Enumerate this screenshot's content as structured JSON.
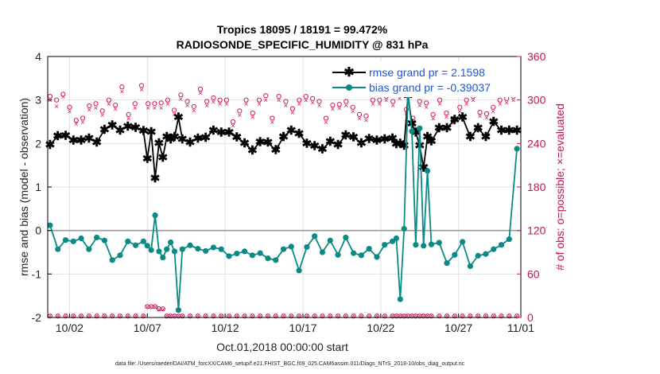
{
  "chart_data": {
    "type": "line",
    "title_line1": "Tropics 18095 / 18191 = 99.472%",
    "title_line2": "RADIOSONDE_SPECIFIC_HUMIDITY @ 831 hPa",
    "xlabel": "Oct.01,2018 00:00:00 start",
    "ylabel_left": "rmse and bias (model - observation)",
    "ylabel_right": "# of obs: o=possible; ×=evaluated",
    "footnote": "data file: /Users/raeder/DAI/ATM_forcXX/CAM6_setup/f.e21.FHIST_BGC.f09_025.CAM6assim.011/Diags_NTrS_2018-10/obs_diag_output.nc",
    "xlim": [
      0.6,
      31.0
    ],
    "ylim_left": [
      -2,
      4
    ],
    "ylim_right": [
      0,
      360
    ],
    "x_ticks": [
      {
        "v": 2,
        "label": "10/02"
      },
      {
        "v": 7,
        "label": "10/07"
      },
      {
        "v": 12,
        "label": "10/12"
      },
      {
        "v": 17,
        "label": "10/17"
      },
      {
        "v": 22,
        "label": "10/22"
      },
      {
        "v": 27,
        "label": "10/27"
      },
      {
        "v": 31,
        "label": "11/01"
      }
    ],
    "y_ticks_left": [
      {
        "v": -2,
        "label": "-2"
      },
      {
        "v": -1,
        "label": "-1"
      },
      {
        "v": 0,
        "label": "0"
      },
      {
        "v": 1,
        "label": "1"
      },
      {
        "v": 2,
        "label": "2"
      },
      {
        "v": 3,
        "label": "3"
      },
      {
        "v": 4,
        "label": "4"
      }
    ],
    "y_ticks_right": [
      {
        "v": 0,
        "label": "0"
      },
      {
        "v": 60,
        "label": "60"
      },
      {
        "v": 120,
        "label": "120"
      },
      {
        "v": 180,
        "label": "180"
      },
      {
        "v": 240,
        "label": "240"
      },
      {
        "v": 300,
        "label": "300"
      },
      {
        "v": 360,
        "label": "360"
      }
    ],
    "zero_line": 0,
    "x": [
      0.75,
      1.25,
      1.75,
      2.25,
      2.75,
      3.25,
      3.75,
      4.25,
      4.75,
      5.25,
      5.75,
      6.25,
      6.75,
      7.0,
      7.25,
      7.5,
      7.75,
      8.0,
      8.25,
      8.5,
      8.75,
      9.0,
      9.25,
      9.75,
      10.25,
      10.75,
      11.25,
      11.75,
      12.25,
      12.75,
      13.25,
      13.75,
      14.25,
      14.75,
      15.25,
      15.75,
      16.25,
      16.75,
      17.25,
      17.75,
      18.25,
      18.75,
      19.25,
      19.75,
      20.25,
      20.75,
      21.25,
      21.75,
      22.25,
      22.75,
      23.0,
      23.25,
      23.5,
      23.75,
      24.0,
      24.25,
      24.5,
      24.75,
      25.0,
      25.25,
      25.75,
      26.25,
      26.75,
      27.25,
      27.75,
      28.25,
      28.75,
      29.25,
      29.75,
      30.25,
      30.75
    ],
    "series": [
      {
        "name": "rmse",
        "legend": "rmse grand pr = 2.1598",
        "color": "#000000",
        "values": [
          1.97,
          2.17,
          2.18,
          2.07,
          2.07,
          2.12,
          2.02,
          2.32,
          2.42,
          2.3,
          2.39,
          2.36,
          2.29,
          1.65,
          2.26,
          1.2,
          2.01,
          1.68,
          2.15,
          2.1,
          2.15,
          2.6,
          2.1,
          2.02,
          2.12,
          2.13,
          2.3,
          2.25,
          2.25,
          2.14,
          2.01,
          1.84,
          2.03,
          2.02,
          1.85,
          2.15,
          2.3,
          2.23,
          2.0,
          1.94,
          1.87,
          2.04,
          1.97,
          2.19,
          2.14,
          2.01,
          2.11,
          2.07,
          2.1,
          2.12,
          1.99,
          2.0,
          1.95,
          3.1,
          2.45,
          2.25,
          1.95,
          1.45,
          2.15,
          2.05,
          2.35,
          2.35,
          2.55,
          2.6,
          2.15,
          2.35,
          2.15,
          2.5,
          2.3,
          2.3,
          2.3
        ]
      },
      {
        "name": "bias",
        "legend": "bias grand pr = -0.39037",
        "color": "#0a8a86",
        "values": [
          0.12,
          -0.43,
          -0.22,
          -0.25,
          -0.18,
          -0.43,
          -0.16,
          -0.23,
          -0.68,
          -0.57,
          -0.25,
          -0.34,
          -0.25,
          -0.35,
          -0.45,
          0.35,
          -0.48,
          -0.62,
          -0.43,
          -0.27,
          -0.48,
          -1.83,
          -0.43,
          -0.34,
          -0.42,
          -0.47,
          -0.39,
          -0.43,
          -0.59,
          -0.53,
          -0.48,
          -0.57,
          -0.52,
          -0.64,
          -0.68,
          -0.43,
          -0.37,
          -0.92,
          -0.38,
          -0.13,
          -0.5,
          -0.23,
          -0.56,
          -0.16,
          -0.52,
          -0.57,
          -0.42,
          -0.61,
          -0.33,
          -0.25,
          -0.18,
          -1.58,
          0.04,
          3.2,
          2.28,
          -0.33,
          2.35,
          -0.35,
          1.37,
          -0.32,
          -0.28,
          -0.75,
          -0.56,
          -0.26,
          -0.82,
          -0.58,
          -0.54,
          -0.43,
          -0.33,
          -0.2,
          1.88
        ]
      }
    ],
    "obs_counts": {
      "possible_first_half": [
        305,
        300,
        308,
        290,
        272,
        275,
        292,
        295,
        285,
        300,
        293,
        318,
        280,
        295,
        320,
        295,
        295,
        296,
        300,
        286,
        307,
        298,
        291,
        315,
        298,
        303,
        300,
        300,
        270,
        285,
        300,
        282,
        300,
        306,
        275,
        305
      ],
      "possible_second_half": [
        298,
        288,
        300,
        305,
        302,
        298,
        275,
        293,
        294,
        298,
        290,
        280,
        278,
        300,
        300,
        305,
        298,
        308,
        287,
        275,
        298,
        296,
        280,
        300,
        282,
        274,
        290,
        300,
        305,
        283,
        281,
        290,
        300,
        302,
        305
      ],
      "evaluated_first_half": [
        300,
        292,
        305,
        285,
        268,
        270,
        287,
        290,
        280,
        295,
        288,
        312,
        275,
        290,
        315,
        290,
        290,
        290,
        295,
        281,
        302,
        293,
        286,
        310,
        293,
        298,
        295,
        295,
        265,
        280,
        295,
        277,
        295,
        301,
        270,
        300
      ],
      "evaluated_second_half": [
        293,
        283,
        295,
        300,
        297,
        293,
        270,
        288,
        289,
        293,
        285,
        275,
        273,
        295,
        295,
        300,
        293,
        303,
        282,
        270,
        293,
        291,
        275,
        295,
        277,
        269,
        285,
        295,
        300,
        278,
        276,
        285,
        295,
        297,
        300
      ],
      "low_possible": [
        2,
        2,
        2,
        2,
        2,
        2,
        2,
        2,
        2,
        2,
        2,
        2,
        2,
        15,
        15,
        15,
        12,
        12,
        2,
        2,
        2,
        2,
        2,
        2,
        2,
        2,
        2,
        2,
        2,
        2,
        2,
        2,
        2,
        2,
        2,
        2,
        2,
        2,
        2,
        2,
        2,
        2,
        2,
        2,
        2,
        2,
        2,
        2,
        2,
        2,
        2,
        2,
        2,
        2,
        2,
        2,
        2,
        2,
        2,
        2,
        2,
        2,
        2,
        2,
        2,
        2,
        2,
        2,
        2,
        2,
        2
      ],
      "low_evaluated": [
        0,
        0,
        0,
        0,
        0,
        0,
        0,
        0,
        0,
        0,
        0,
        0,
        0,
        12,
        12,
        12,
        9,
        9,
        0,
        0,
        0,
        0,
        0,
        0,
        0,
        0,
        0,
        0,
        0,
        0,
        0,
        0,
        0,
        0,
        0,
        0,
        0,
        0,
        0,
        0,
        0,
        0,
        0,
        0,
        0,
        0,
        0,
        0,
        0,
        0,
        0,
        0,
        0,
        0,
        0,
        0,
        0,
        0,
        0,
        0,
        0,
        0,
        0,
        0,
        0,
        0,
        0,
        0,
        0,
        0,
        0
      ]
    },
    "colors": {
      "obs": "#d6145a",
      "grid": "#e0e0e0",
      "zero": "#9a9a9a",
      "axis": "#000000"
    }
  }
}
